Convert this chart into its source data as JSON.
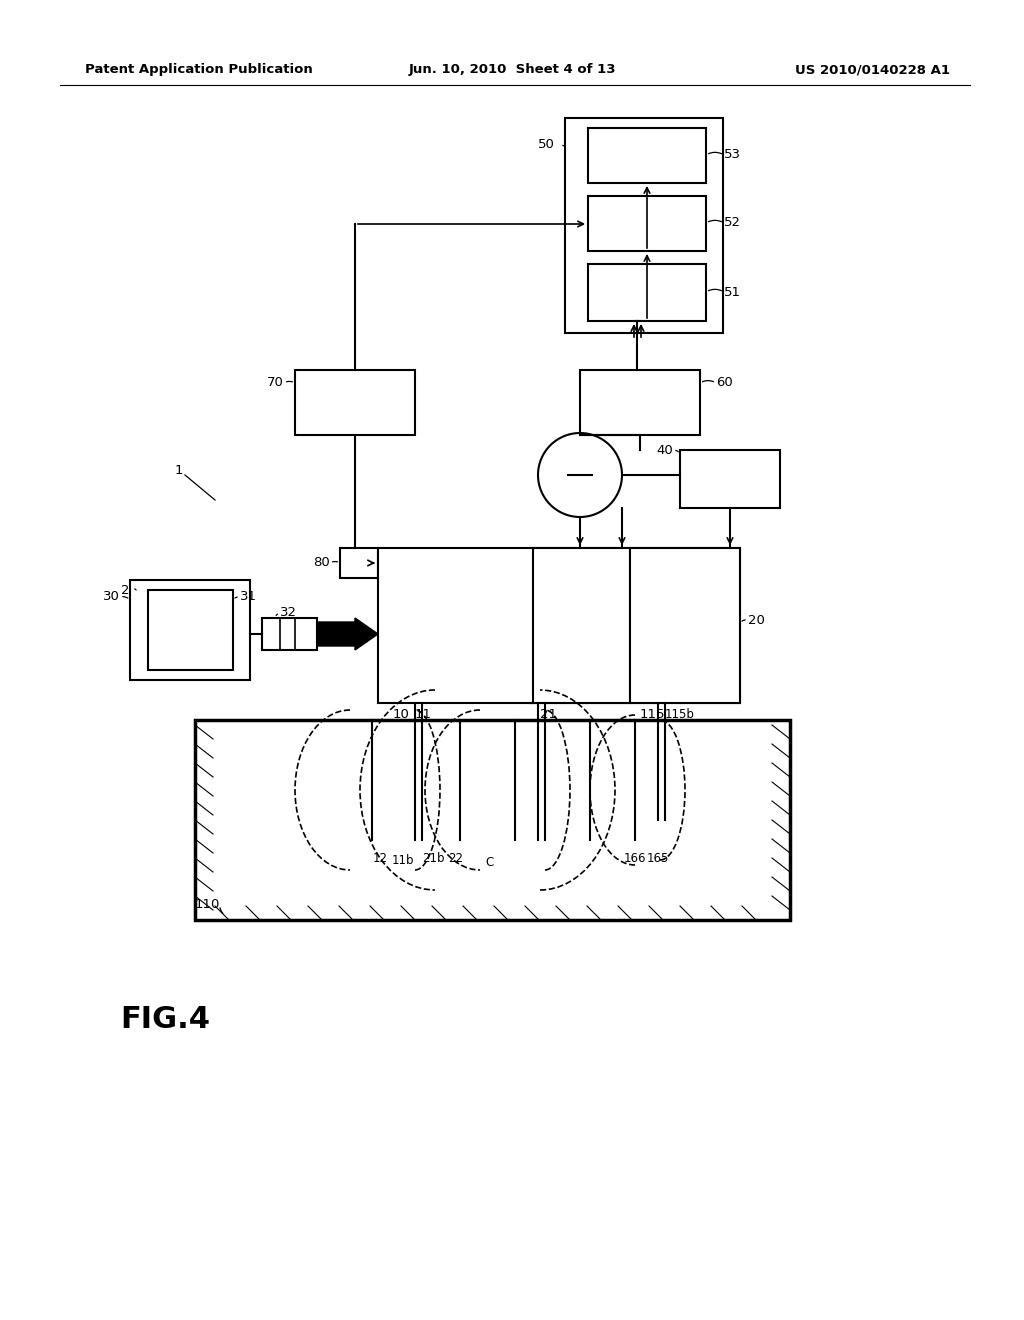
{
  "bg_color": "#ffffff",
  "header_left": "Patent Application Publication",
  "header_center": "Jun. 10, 2010  Sheet 4 of 13",
  "header_right": "US 2010/0140228 A1"
}
